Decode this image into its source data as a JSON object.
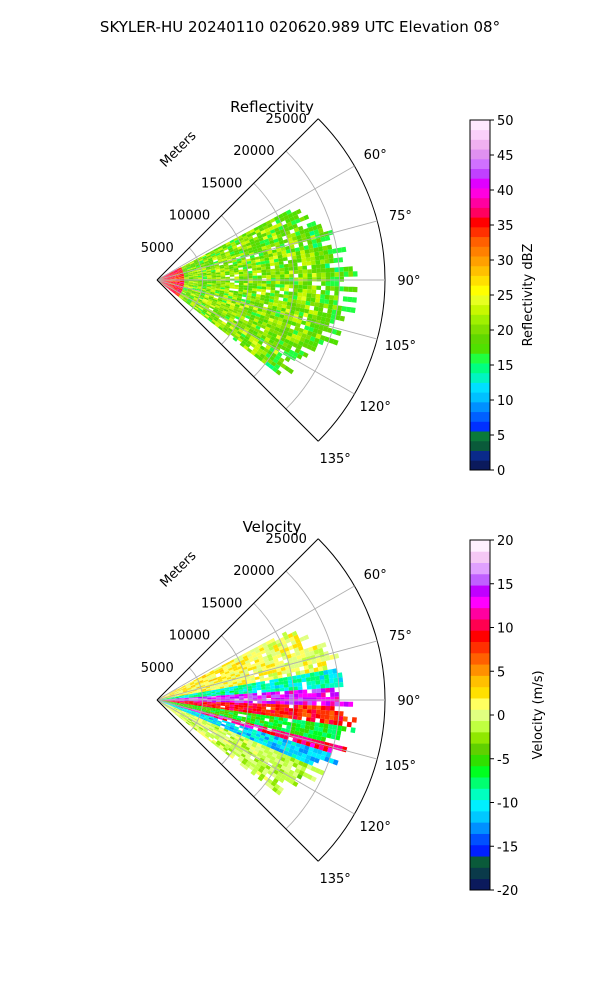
{
  "figure": {
    "title": "SKYLER-HU  20240110  020620.989 UTC Elevation 08°"
  },
  "panels": [
    {
      "id": "reflectivity",
      "title": "Reflectivity",
      "range_label": "Meters",
      "range_tick_labels": [
        "5000",
        "10000",
        "15000",
        "20000",
        "25000"
      ],
      "azimuth_tick_labels": [
        "60°",
        "75°",
        "90°",
        "105°",
        "120°",
        "135°"
      ],
      "colorbar": {
        "label": "Reflectivity dBZ",
        "tick_labels": [
          "0",
          "5",
          "10",
          "15",
          "20",
          "25",
          "30",
          "35",
          "40",
          "45",
          "50"
        ],
        "colors": [
          "#0b1a5c",
          "#0a2a8a",
          "#0a5a3a",
          "#0a7a3a",
          "#0030ff",
          "#0060ff",
          "#0090ff",
          "#00c0ff",
          "#00e0ff",
          "#00f5c0",
          "#00ff80",
          "#20ff40",
          "#50e000",
          "#60d800",
          "#80e000",
          "#a0f000",
          "#c8f800",
          "#e8ff20",
          "#ffff00",
          "#ffe000",
          "#ffc000",
          "#ffa000",
          "#ff8000",
          "#ff6000",
          "#ff3000",
          "#ff0000",
          "#ff0060",
          "#ff00a0",
          "#ff00e0",
          "#e000ff",
          "#c040ff",
          "#d070ff",
          "#e090f0",
          "#f0b0f0",
          "#fad0fa",
          "#ffe8ff"
        ]
      }
    },
    {
      "id": "velocity",
      "title": "Velocity",
      "range_label": "Meters",
      "range_tick_labels": [
        "5000",
        "10000",
        "15000",
        "20000",
        "25000"
      ],
      "azimuth_tick_labels": [
        "60°",
        "75°",
        "90°",
        "105°",
        "120°",
        "135°"
      ],
      "colorbar": {
        "label": "Velocity (m/s)",
        "tick_labels": [
          "-20",
          "-15",
          "-10",
          "-5",
          "0",
          "5",
          "10",
          "15",
          "20"
        ],
        "colors": [
          "#0b1a5c",
          "#0a3a4a",
          "#0a5a3a",
          "#0020ff",
          "#0050ff",
          "#0090ff",
          "#00c8ff",
          "#00f0ff",
          "#00ffc0",
          "#00ff70",
          "#00ff20",
          "#30e000",
          "#60d000",
          "#90e800",
          "#c0ff40",
          "#e0ff80",
          "#ffff60",
          "#ffe000",
          "#ffc000",
          "#ff9000",
          "#ff6000",
          "#ff3000",
          "#ff0000",
          "#ff0050",
          "#ff00a0",
          "#ff00ff",
          "#c000ff",
          "#c060ff",
          "#e0a0ff",
          "#f5c8f5",
          "#fff0ff"
        ]
      }
    }
  ],
  "chart_data": [
    {
      "type": "heatmap",
      "projection": "polar-sector",
      "title": "Reflectivity",
      "azimuth_range_deg": [
        45,
        135
      ],
      "range_max_m": 25000,
      "range_ticks_m": [
        5000,
        10000,
        15000,
        20000,
        25000
      ],
      "azimuth_ticks_deg": [
        60,
        75,
        90,
        105,
        120,
        135
      ],
      "colorbar_range": [
        0,
        50
      ],
      "colorbar_unit": "dBZ",
      "echo_extent": {
        "azimuth_deg": [
          62,
          127
        ],
        "range_m": [
          0,
          22000
        ]
      },
      "dominant_values_dbz": {
        "near_radar": 32,
        "main_echo": 20,
        "echo_edges": 15
      },
      "grid": true
    },
    {
      "type": "heatmap",
      "projection": "polar-sector",
      "title": "Velocity",
      "azimuth_range_deg": [
        45,
        135
      ],
      "range_max_m": 25000,
      "range_ticks_m": [
        5000,
        10000,
        15000,
        20000,
        25000
      ],
      "azimuth_ticks_deg": [
        60,
        75,
        90,
        105,
        120,
        135
      ],
      "colorbar_range": [
        -20,
        20
      ],
      "colorbar_unit": "m/s",
      "echo_extent": {
        "azimuth_deg": [
          62,
          127
        ],
        "range_m": [
          0,
          22000
        ]
      },
      "velocity_bands": [
        {
          "azimuth_deg": [
            62,
            80
          ],
          "value_ms": 2
        },
        {
          "azimuth_deg": [
            80,
            86
          ],
          "value_ms": -8
        },
        {
          "azimuth_deg": [
            86,
            92
          ],
          "value_ms": 15
        },
        {
          "azimuth_deg": [
            92,
            97
          ],
          "value_ms": 10
        },
        {
          "azimuth_deg": [
            97,
            103
          ],
          "value_ms": -5
        },
        {
          "azimuth_deg": [
            103,
            107
          ],
          "value_ms": 12
        },
        {
          "azimuth_deg": [
            107,
            112
          ],
          "value_ms": -10
        },
        {
          "azimuth_deg": [
            112,
            127
          ],
          "value_ms": 0
        }
      ],
      "grid": true
    }
  ]
}
